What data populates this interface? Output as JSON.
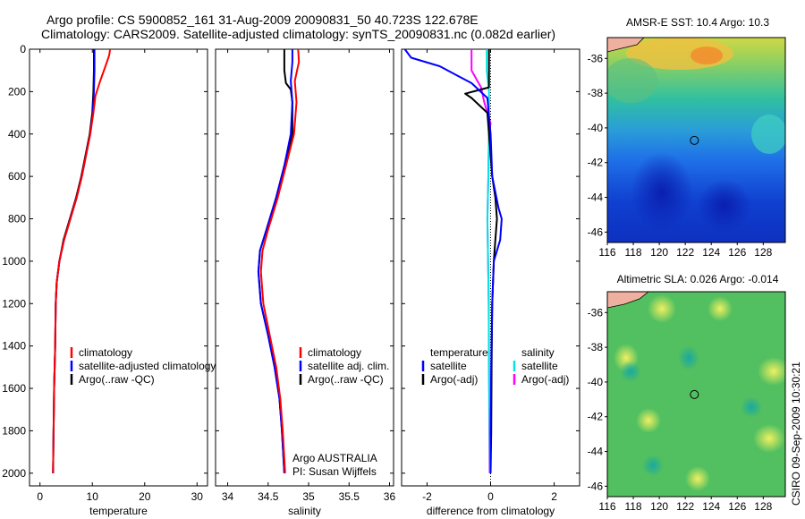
{
  "header": {
    "line1": "Argo profile: CS 5900852_161 31-Aug-2009 20090831_50 40.723S 122.678E",
    "line2": "Climatology: CARS2009. Satellite-adjusted climatology: synTS_20090831.nc (0.082d earlier)"
  },
  "colors": {
    "climatology": "#ff0000",
    "satellite": "#0000ff",
    "argo": "#000000",
    "sat_salinity": "#00e5e5",
    "argo_salinity": "#ff00ff"
  },
  "chart_data": [
    {
      "type": "line",
      "xlabel": "temperature",
      "xlim": [
        -2,
        32
      ],
      "xticks": [
        0,
        10,
        20,
        30
      ],
      "ylim": [
        2060,
        0
      ],
      "yticks": [
        0,
        200,
        400,
        600,
        800,
        1000,
        1200,
        1400,
        1600,
        1800,
        2000
      ],
      "legend": {
        "placement": "lower-right",
        "entries": [
          "climatology",
          "satellite-adjusted climatology",
          "Argo(..raw -QC)"
        ]
      },
      "series": [
        {
          "name": "climatology",
          "color": "#ff0000",
          "points": [
            [
              13.4,
              0
            ],
            [
              13.2,
              30
            ],
            [
              12.5,
              80
            ],
            [
              11.5,
              150
            ],
            [
              10.6,
              220
            ],
            [
              10.2,
              300
            ],
            [
              9.6,
              400
            ],
            [
              8.8,
              500
            ],
            [
              8.0,
              600
            ],
            [
              7.0,
              700
            ],
            [
              5.8,
              800
            ],
            [
              4.6,
              900
            ],
            [
              3.7,
              1000
            ],
            [
              3.2,
              1100
            ],
            [
              3.0,
              1200
            ],
            [
              2.9,
              1400
            ],
            [
              2.7,
              1600
            ],
            [
              2.6,
              1800
            ],
            [
              2.5,
              2000
            ]
          ]
        },
        {
          "name": "satellite-adjusted climatology",
          "color": "#0000ff",
          "points": [
            [
              10.4,
              0
            ],
            [
              10.4,
              100
            ],
            [
              10.3,
              200
            ],
            [
              10.1,
              300
            ],
            [
              9.6,
              400
            ],
            [
              8.8,
              500
            ],
            [
              8.0,
              600
            ],
            [
              7.0,
              700
            ],
            [
              5.8,
              800
            ],
            [
              4.6,
              900
            ],
            [
              3.7,
              1000
            ],
            [
              3.2,
              1100
            ],
            [
              3.0,
              1200
            ],
            [
              2.9,
              1400
            ],
            [
              2.7,
              1600
            ],
            [
              2.6,
              1800
            ],
            [
              2.5,
              2000
            ]
          ]
        },
        {
          "name": "Argo(..raw -QC)",
          "color": "#000000",
          "points": [
            [
              10.3,
              0
            ],
            [
              10.3,
              100
            ],
            [
              10.2,
              200
            ],
            [
              10.0,
              300
            ],
            [
              9.5,
              400
            ],
            [
              8.7,
              500
            ],
            [
              7.9,
              600
            ],
            [
              6.9,
              700
            ],
            [
              5.7,
              800
            ],
            [
              4.5,
              900
            ],
            [
              3.7,
              1000
            ],
            [
              3.2,
              1100
            ],
            [
              3.0,
              1200
            ],
            [
              2.9,
              1400
            ],
            [
              2.7,
              1600
            ],
            [
              2.6,
              1800
            ],
            [
              2.5,
              2000
            ]
          ]
        }
      ]
    },
    {
      "type": "line",
      "xlabel": "salinity",
      "xlim": [
        33.85,
        36.05
      ],
      "xticks": [
        34,
        34.5,
        35,
        35.5,
        36
      ],
      "ylim": [
        2060,
        0
      ],
      "legend": {
        "placement": "lower-right",
        "entries": [
          "climatology",
          "satellite adj. clim.",
          "Argo(..raw -QC)"
        ]
      },
      "annotation": [
        "Argo AUSTRALIA",
        "PI: Susan Wijffels"
      ],
      "series": [
        {
          "name": "climatology",
          "color": "#ff0000",
          "points": [
            [
              34.87,
              0
            ],
            [
              34.88,
              60
            ],
            [
              34.83,
              150
            ],
            [
              34.85,
              250
            ],
            [
              34.82,
              400
            ],
            [
              34.72,
              550
            ],
            [
              34.62,
              700
            ],
            [
              34.5,
              850
            ],
            [
              34.43,
              950
            ],
            [
              34.41,
              1050
            ],
            [
              34.44,
              1200
            ],
            [
              34.52,
              1350
            ],
            [
              34.6,
              1500
            ],
            [
              34.65,
              1650
            ],
            [
              34.68,
              1800
            ],
            [
              34.71,
              2000
            ]
          ]
        },
        {
          "name": "satellite adj. clim.",
          "color": "#0000ff",
          "points": [
            [
              34.8,
              0
            ],
            [
              34.8,
              60
            ],
            [
              34.78,
              150
            ],
            [
              34.8,
              250
            ],
            [
              34.78,
              400
            ],
            [
              34.7,
              550
            ],
            [
              34.6,
              700
            ],
            [
              34.48,
              850
            ],
            [
              34.4,
              950
            ],
            [
              34.38,
              1050
            ],
            [
              34.41,
              1200
            ],
            [
              34.5,
              1350
            ],
            [
              34.58,
              1500
            ],
            [
              34.64,
              1650
            ],
            [
              34.67,
              1800
            ],
            [
              34.7,
              2000
            ]
          ]
        },
        {
          "name": "Argo(..raw -QC)",
          "color": "#000000",
          "points": [
            [
              34.7,
              0
            ],
            [
              34.7,
              100
            ],
            [
              34.72,
              160
            ],
            [
              34.78,
              190
            ],
            [
              34.8,
              250
            ],
            [
              34.8,
              400
            ],
            [
              34.7,
              550
            ],
            [
              34.6,
              700
            ],
            [
              34.48,
              850
            ],
            [
              34.4,
              950
            ],
            [
              34.38,
              1050
            ],
            [
              34.41,
              1200
            ],
            [
              34.5,
              1350
            ],
            [
              34.58,
              1500
            ],
            [
              34.64,
              1650
            ],
            [
              34.67,
              1800
            ],
            [
              34.7,
              2000
            ]
          ]
        }
      ]
    },
    {
      "type": "line",
      "xlabel": "difference from climatology",
      "xlim": [
        -2.8,
        2.8
      ],
      "xticks": [
        -2,
        0,
        2
      ],
      "ylim": [
        2060,
        0
      ],
      "legend": {
        "placement": "lower-right",
        "groups": [
          {
            "title": "temperature",
            "entries": [
              "satellite",
              "Argo(-adj)"
            ]
          },
          {
            "title": "salinity",
            "entries": [
              "satellite",
              "Argo(-adj)"
            ]
          }
        ]
      },
      "series": [
        {
          "name": "temperature satellite",
          "color": "#0000ff",
          "points": [
            [
              -2.7,
              0
            ],
            [
              -2.5,
              40
            ],
            [
              -1.6,
              80
            ],
            [
              -0.6,
              160
            ],
            [
              -0.1,
              230
            ],
            [
              0.0,
              400
            ],
            [
              0.05,
              600
            ],
            [
              0.25,
              750
            ],
            [
              0.35,
              800
            ],
            [
              0.3,
              900
            ],
            [
              0.1,
              1000
            ],
            [
              0.05,
              1200
            ],
            [
              0.02,
              1500
            ],
            [
              0.0,
              1800
            ],
            [
              0.0,
              2000
            ]
          ]
        },
        {
          "name": "temperature Argo(-adj)",
          "color": "#000000",
          "points": [
            [
              -0.05,
              0
            ],
            [
              -0.05,
              180
            ],
            [
              -0.3,
              190
            ],
            [
              -0.8,
              210
            ],
            [
              -0.6,
              230
            ],
            [
              -0.1,
              300
            ],
            [
              -0.05,
              400
            ],
            [
              0.05,
              600
            ],
            [
              0.15,
              700
            ],
            [
              0.2,
              800
            ],
            [
              0.15,
              900
            ],
            [
              0.1,
              1000
            ],
            [
              0.05,
              1200
            ],
            [
              0.03,
              1500
            ],
            [
              0.02,
              1800
            ],
            [
              0.0,
              2000
            ]
          ]
        },
        {
          "name": "salinity satellite",
          "color": "#00e5e5",
          "points": [
            [
              -0.12,
              0
            ],
            [
              -0.12,
              100
            ],
            [
              -0.05,
              200
            ],
            [
              -0.05,
              400
            ],
            [
              -0.07,
              600
            ],
            [
              -0.1,
              800
            ],
            [
              -0.08,
              1000
            ],
            [
              -0.06,
              1200
            ],
            [
              -0.05,
              1500
            ],
            [
              -0.03,
              1800
            ],
            [
              -0.02,
              2000
            ]
          ]
        },
        {
          "name": "salinity Argo(-adj)",
          "color": "#ff00ff",
          "points": [
            [
              -0.6,
              0
            ],
            [
              -0.6,
              100
            ],
            [
              -0.3,
              180
            ],
            [
              -0.2,
              250
            ],
            [
              0.0,
              350
            ],
            [
              -0.05,
              400
            ],
            [
              -0.07,
              600
            ],
            [
              -0.1,
              800
            ],
            [
              -0.08,
              1000
            ],
            [
              -0.06,
              1200
            ],
            [
              -0.05,
              1500
            ],
            [
              -0.04,
              1800
            ],
            [
              -0.03,
              2000
            ]
          ]
        }
      ]
    },
    {
      "type": "heatmap",
      "title": "AMSR-E SST: 10.4  Argo: 10.3",
      "xlim": [
        116,
        129.7
      ],
      "ylim": [
        -46.6,
        -34.8
      ],
      "xticks": [
        116,
        118,
        120,
        122,
        124,
        126,
        128
      ],
      "yticks": [
        -36,
        -38,
        -40,
        -42,
        -44,
        -46
      ],
      "marker": [
        122.7,
        -40.72
      ]
    },
    {
      "type": "heatmap",
      "title": "Altimetric SLA: 0.026  Argo: -0.014",
      "xlim": [
        116,
        129.7
      ],
      "ylim": [
        -46.6,
        -34.8
      ],
      "xticks": [
        116,
        118,
        120,
        122,
        124,
        126,
        128
      ],
      "yticks": [
        -36,
        -38,
        -40,
        -42,
        -44,
        -46
      ],
      "marker": [
        122.7,
        -40.72
      ]
    }
  ],
  "credit": "CSIRO 09-Sep-2009 10:30:21"
}
